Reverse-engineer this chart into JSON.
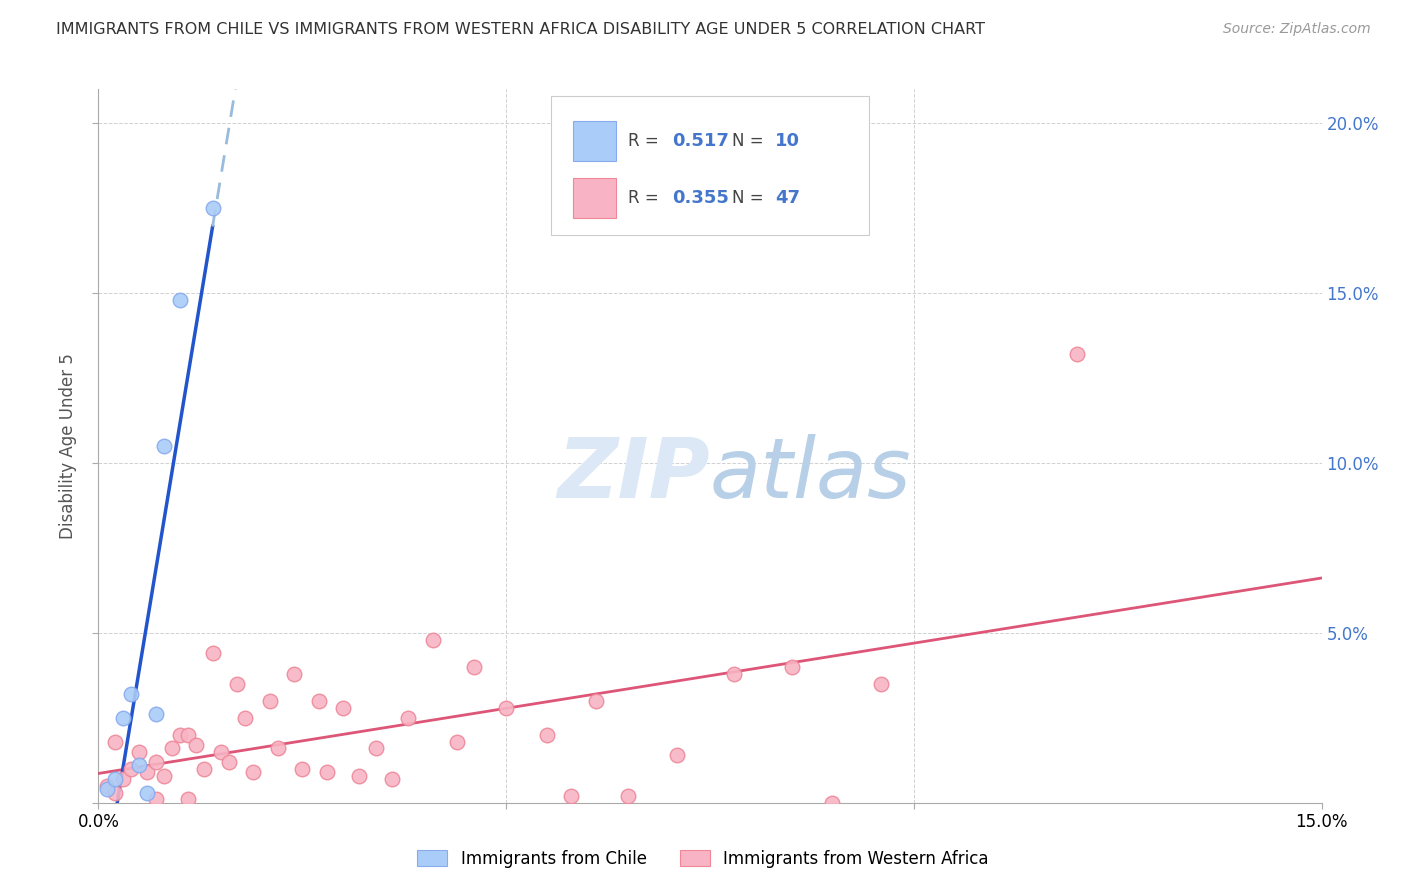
{
  "title": "IMMIGRANTS FROM CHILE VS IMMIGRANTS FROM WESTERN AFRICA DISABILITY AGE UNDER 5 CORRELATION CHART",
  "source": "Source: ZipAtlas.com",
  "ylabel": "Disability Age Under 5",
  "xlim": [
    0.0,
    0.15
  ],
  "ylim": [
    0.0,
    0.21
  ],
  "yticks": [
    0.0,
    0.05,
    0.1,
    0.15,
    0.2
  ],
  "xticks": [
    0.0,
    0.05,
    0.1,
    0.15
  ],
  "chile_color": "#aaccf8",
  "chile_edge_color": "#88aaee",
  "wa_color": "#f8b4c4",
  "wa_edge_color": "#ee8899",
  "blue_line_color": "#2255cc",
  "pink_line_color": "#dd5577",
  "blue_dash_color": "#99bbdd",
  "legend_R_blue": "0.517",
  "legend_N_blue": "10",
  "legend_R_pink": "0.355",
  "legend_N_pink": "47",
  "chile_label": "Immigrants from Chile",
  "wa_label": "Immigrants from Western Africa",
  "chile_x": [
    0.001,
    0.002,
    0.003,
    0.004,
    0.005,
    0.006,
    0.007,
    0.008,
    0.01,
    0.014
  ],
  "chile_y": [
    0.004,
    0.007,
    0.025,
    0.032,
    0.011,
    0.003,
    0.026,
    0.105,
    0.148,
    0.175
  ],
  "wa_x": [
    0.001,
    0.002,
    0.002,
    0.003,
    0.004,
    0.005,
    0.006,
    0.007,
    0.007,
    0.008,
    0.009,
    0.01,
    0.011,
    0.011,
    0.012,
    0.013,
    0.014,
    0.015,
    0.016,
    0.017,
    0.018,
    0.019,
    0.021,
    0.022,
    0.024,
    0.025,
    0.027,
    0.028,
    0.03,
    0.032,
    0.034,
    0.036,
    0.038,
    0.041,
    0.044,
    0.046,
    0.05,
    0.055,
    0.058,
    0.061,
    0.065,
    0.071,
    0.078,
    0.085,
    0.09,
    0.096,
    0.12
  ],
  "wa_y": [
    0.005,
    0.003,
    0.018,
    0.007,
    0.01,
    0.015,
    0.009,
    0.012,
    0.001,
    0.008,
    0.016,
    0.02,
    0.02,
    0.001,
    0.017,
    0.01,
    0.044,
    0.015,
    0.012,
    0.035,
    0.025,
    0.009,
    0.03,
    0.016,
    0.038,
    0.01,
    0.03,
    0.009,
    0.028,
    0.008,
    0.016,
    0.007,
    0.025,
    0.048,
    0.018,
    0.04,
    0.028,
    0.02,
    0.002,
    0.03,
    0.002,
    0.014,
    0.038,
    0.04,
    0.0,
    0.035,
    0.132
  ]
}
